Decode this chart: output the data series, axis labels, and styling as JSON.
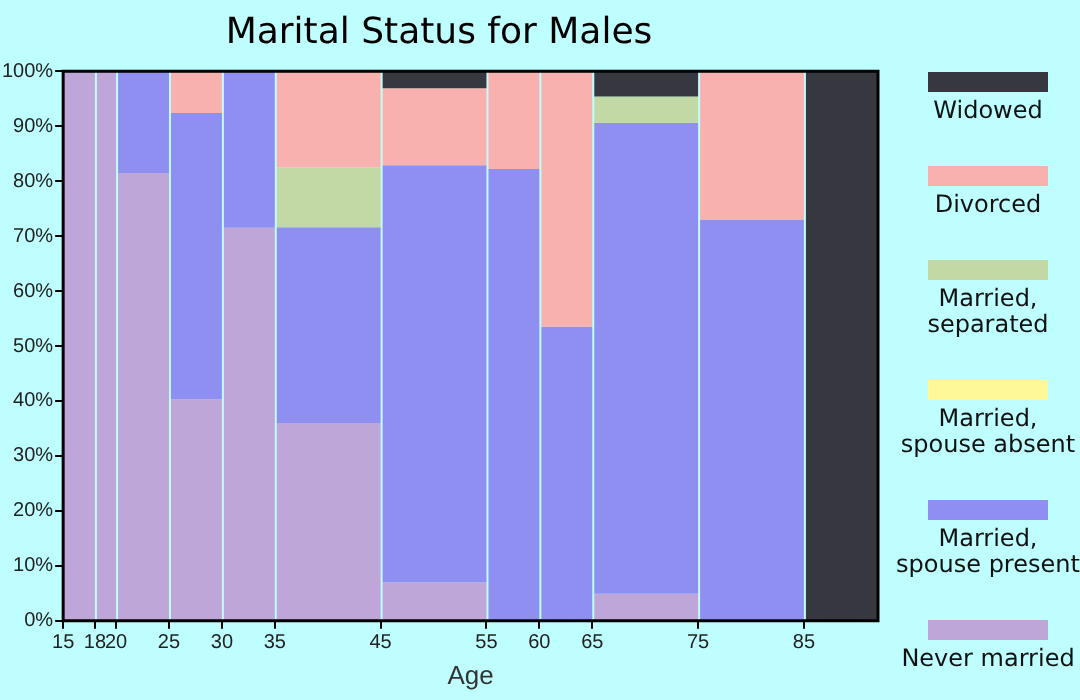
{
  "chart_data": {
    "type": "bar",
    "title": "Marital Status for Males",
    "xlabel": "Age",
    "stacked": true,
    "x": [
      16.5,
      19,
      22.5,
      27.5,
      32.5,
      40,
      50,
      57.5,
      62.5,
      70,
      80,
      88.5
    ],
    "xlim": [
      15,
      92
    ],
    "xticks": [
      15,
      18,
      20,
      25,
      30,
      35,
      45,
      55,
      60,
      65,
      75,
      85
    ],
    "ylim": [
      0,
      100
    ],
    "yticks": [
      {
        "value": 0,
        "label": "0%"
      },
      {
        "value": 10,
        "label": "10%"
      },
      {
        "value": 20,
        "label": "20%"
      },
      {
        "value": 30,
        "label": "30%"
      },
      {
        "value": 40,
        "label": "40%"
      },
      {
        "value": 50,
        "label": "50%"
      },
      {
        "value": 60,
        "label": "60%"
      },
      {
        "value": 70,
        "label": "70%"
      },
      {
        "value": 80,
        "label": "80%"
      },
      {
        "value": 90,
        "label": "90%"
      },
      {
        "value": 100,
        "label": "100%"
      }
    ],
    "grid": false,
    "legend": "right",
    "series": [
      {
        "name": "Never married",
        "color": "#bea7d8",
        "values": [
          100,
          100,
          81.5,
          40.3,
          71.5,
          36,
          7,
          0,
          0,
          4.9,
          0,
          0
        ]
      },
      {
        "name": "Married, spouse present",
        "color": "#8f8ff2",
        "values": [
          0,
          0,
          18.5,
          52.1,
          28.5,
          35.6,
          75.9,
          82.2,
          53.5,
          85.7,
          73,
          0
        ]
      },
      {
        "name": "Married, spouse absent",
        "color": "#fff899",
        "values": [
          0,
          0,
          0,
          0,
          0,
          0,
          0,
          0,
          0,
          0,
          0,
          0
        ]
      },
      {
        "name": "Married, separated",
        "color": "#c3d9a5",
        "values": [
          0,
          0,
          0,
          0,
          0,
          10.9,
          0,
          0,
          0,
          4.8,
          0,
          0
        ]
      },
      {
        "name": "Divorced",
        "color": "#f9b1b0",
        "values": [
          0,
          0,
          0,
          7.6,
          0,
          17.5,
          14,
          17.8,
          46.5,
          0,
          27,
          0
        ]
      },
      {
        "name": "Widowed",
        "color": "#37383f",
        "values": [
          0,
          0,
          0,
          0,
          0,
          0,
          3.1,
          0,
          0,
          4.6,
          0,
          100
        ]
      }
    ]
  }
}
